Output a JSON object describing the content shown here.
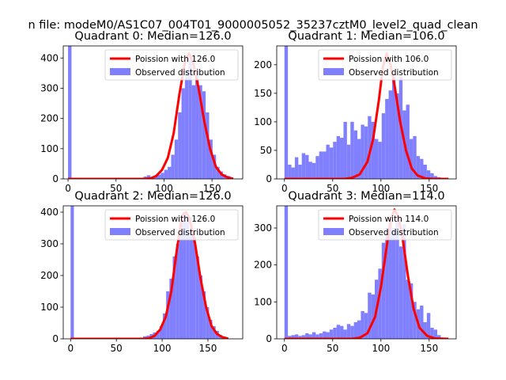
{
  "figure": {
    "suptitle": "n file: modeM0/AS1C07_004T01_9000005052_35237cztM0_level2_quad_clean"
  },
  "colors": {
    "poisson": "#ff0000",
    "observed": "#8080ff",
    "axes": "#000000",
    "background": "#ffffff"
  },
  "chart_data": [
    {
      "type": "bar",
      "title": "Quadrant 0: Median=126.0",
      "median": 126.0,
      "xlim": [
        -5,
        182
      ],
      "ylim": [
        0,
        440
      ],
      "xticks": [
        0,
        50,
        100,
        150
      ],
      "yticks": [
        0,
        100,
        200,
        300,
        400
      ],
      "legend": {
        "location": "upper-right",
        "entries": [
          "Poission with 126.0",
          "Observed distribution"
        ]
      },
      "observed_distribution": {
        "bin_width": 3.6,
        "bins_x": [
          0,
          75,
          78.6,
          82.2,
          85.8,
          89.4,
          93,
          96.6,
          100.2,
          103.8,
          107.4,
          111,
          114.6,
          118.2,
          121.8,
          125.4,
          129,
          132.6,
          136.2,
          139.8,
          143.4,
          147,
          150.6,
          154.2,
          157.8,
          161.4,
          165,
          168.6
        ],
        "counts": [
          440,
          2,
          8,
          12,
          6,
          10,
          14,
          20,
          30,
          40,
          80,
          130,
          220,
          300,
          360,
          400,
          310,
          360,
          310,
          290,
          220,
          130,
          80,
          40,
          25,
          15,
          10,
          4
        ]
      },
      "poisson_curve": {
        "x": [
          0,
          80,
          86,
          92,
          98,
          104,
          110,
          116,
          122,
          126,
          130,
          136,
          142,
          148,
          154,
          160,
          166,
          172
        ],
        "y": [
          0,
          0,
          2,
          10,
          30,
          70,
          150,
          280,
          390,
          415,
          390,
          300,
          190,
          100,
          40,
          15,
          5,
          1
        ]
      }
    },
    {
      "type": "bar",
      "title": "Quadrant 1: Median=106.0",
      "median": 106.0,
      "xlim": [
        -8,
        178
      ],
      "ylim": [
        0,
        233
      ],
      "xticks": [
        0,
        50,
        100,
        150
      ],
      "yticks": [
        0,
        50,
        100,
        150,
        200
      ],
      "legend": {
        "location": "upper-right",
        "entries": [
          "Poission with 106.0",
          "Observed distribution"
        ]
      },
      "observed_distribution": {
        "bin_width": 3.6,
        "bins_x": [
          0,
          3.6,
          7.2,
          10.8,
          14.4,
          18,
          21.6,
          25.2,
          28.8,
          32.4,
          36,
          39.6,
          43.2,
          46.8,
          50.4,
          54,
          57.6,
          61.2,
          64.8,
          68.4,
          72,
          75.6,
          79.2,
          82.8,
          86.4,
          90,
          93.6,
          97.2,
          100.8,
          104.4,
          108,
          111.6,
          115.2,
          118.8,
          122.4,
          126,
          129.6,
          133.2,
          136.8,
          140.4,
          144,
          147.6,
          151.2,
          154.8,
          158.4
        ],
        "counts": [
          233,
          25,
          20,
          38,
          25,
          45,
          42,
          30,
          28,
          40,
          48,
          48,
          60,
          55,
          65,
          75,
          72,
          100,
          60,
          100,
          85,
          70,
          95,
          92,
          110,
          100,
          70,
          65,
          115,
          140,
          155,
          185,
          150,
          180,
          120,
          130,
          70,
          75,
          40,
          35,
          25,
          15,
          10,
          5,
          3
        ]
      },
      "poisson_curve": {
        "x": [
          0,
          62,
          70,
          78,
          86,
          92,
          98,
          102,
          106,
          110,
          114,
          120,
          126,
          132,
          138,
          146,
          154,
          170
        ],
        "y": [
          0,
          0,
          2,
          8,
          30,
          70,
          140,
          195,
          220,
          200,
          165,
          100,
          50,
          18,
          6,
          1,
          0,
          0
        ]
      }
    },
    {
      "type": "bar",
      "title": "Quadrant 2: Median=126.0",
      "median": 126.0,
      "xlim": [
        -8,
        188
      ],
      "ylim": [
        0,
        420
      ],
      "xticks": [
        0,
        50,
        100,
        150
      ],
      "yticks": [
        0,
        100,
        200,
        300,
        400
      ],
      "legend": {
        "location": "upper-right",
        "entries": [
          "Poission with 126.0",
          "Observed distribution"
        ]
      },
      "observed_distribution": {
        "bin_width": 3.6,
        "bins_x": [
          0,
          72,
          75.6,
          79.2,
          82.8,
          86.4,
          90,
          93.6,
          97.2,
          100.8,
          104.4,
          108,
          111.6,
          115.2,
          118.8,
          122.4,
          126,
          129.6,
          133.2,
          136.8,
          140.4,
          144,
          147.6,
          151.2,
          154.8,
          158.4,
          162,
          165.6,
          169.2
        ],
        "counts": [
          420,
          2,
          4,
          8,
          10,
          15,
          20,
          25,
          40,
          80,
          150,
          190,
          260,
          300,
          360,
          400,
          380,
          340,
          320,
          260,
          200,
          150,
          100,
          60,
          40,
          25,
          12,
          6,
          3
        ]
      },
      "poisson_curve": {
        "x": [
          0,
          80,
          86,
          92,
          98,
          104,
          110,
          116,
          122,
          126,
          130,
          136,
          142,
          148,
          154,
          160,
          166,
          172
        ],
        "y": [
          0,
          0,
          2,
          10,
          30,
          70,
          150,
          280,
          390,
          400,
          380,
          300,
          190,
          100,
          40,
          15,
          5,
          1
        ]
      }
    },
    {
      "type": "bar",
      "title": "Quadrant 3: Median=114.0",
      "median": 114.0,
      "xlim": [
        -8,
        178
      ],
      "ylim": [
        0,
        360
      ],
      "xticks": [
        0,
        50,
        100,
        150
      ],
      "yticks": [
        0,
        100,
        200,
        300
      ],
      "legend": {
        "location": "upper-right",
        "entries": [
          "Poission with 114.0",
          "Observed distribution"
        ]
      },
      "observed_distribution": {
        "bin_width": 3.6,
        "bins_x": [
          0,
          3.6,
          7.2,
          10.8,
          14.4,
          18,
          21.6,
          25.2,
          28.8,
          32.4,
          36,
          39.6,
          43.2,
          46.8,
          50.4,
          54,
          57.6,
          61.2,
          64.8,
          68.4,
          72,
          75.6,
          79.2,
          82.8,
          86.4,
          90,
          93.6,
          97.2,
          100.8,
          104.4,
          108,
          111.6,
          115.2,
          118.8,
          122.4,
          126,
          129.6,
          133.2,
          136.8,
          140.4,
          144,
          147.6,
          151.2,
          154.8,
          158.4
        ],
        "counts": [
          360,
          8,
          10,
          12,
          8,
          10,
          15,
          12,
          18,
          12,
          15,
          20,
          18,
          25,
          30,
          38,
          35,
          25,
          40,
          35,
          45,
          50,
          75,
          70,
          125,
          120,
          160,
          190,
          260,
          300,
          320,
          300,
          320,
          250,
          310,
          160,
          150,
          100,
          80,
          90,
          45,
          70,
          30,
          25,
          10
        ]
      },
      "poisson_curve": {
        "x": [
          0,
          70,
          78,
          86,
          94,
          100,
          106,
          110,
          114,
          118,
          122,
          128,
          134,
          140,
          148,
          156,
          170
        ],
        "y": [
          0,
          0,
          3,
          15,
          60,
          140,
          250,
          320,
          350,
          330,
          280,
          170,
          80,
          30,
          8,
          1,
          0
        ]
      }
    }
  ]
}
